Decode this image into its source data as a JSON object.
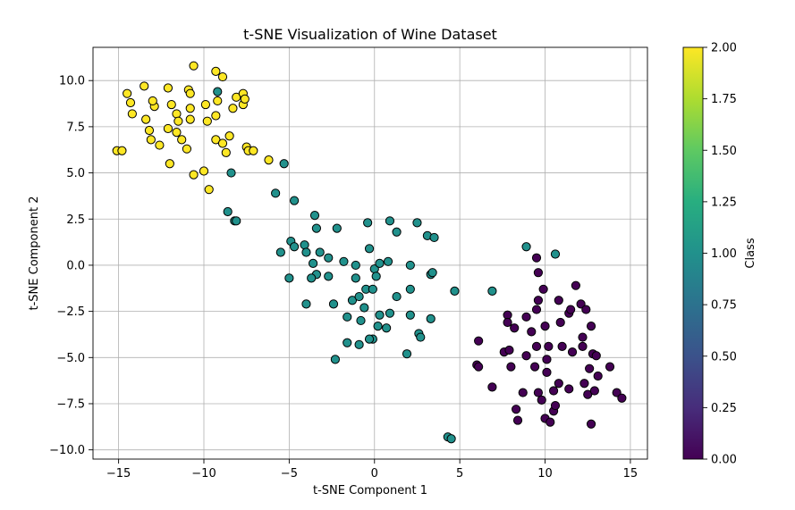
{
  "chart_data": {
    "type": "scatter",
    "title": "t-SNE Visualization of Wine Dataset",
    "xlabel": "t-SNE Component 1",
    "ylabel": "t-SNE Component 2",
    "xlim": [
      -16.5,
      16.0
    ],
    "ylim": [
      -10.5,
      11.8
    ],
    "xticks": [
      -15,
      -10,
      -5,
      0,
      5,
      10,
      15
    ],
    "yticks": [
      -10.0,
      -7.5,
      -5.0,
      -2.5,
      0.0,
      2.5,
      5.0,
      7.5,
      10.0
    ],
    "xtick_labels": [
      "−15",
      "−10",
      "−5",
      "0",
      "5",
      "10",
      "15"
    ],
    "ytick_labels": [
      "−10.0",
      "−7.5",
      "−5.0",
      "−2.5",
      "0.0",
      "2.5",
      "5.0",
      "7.5",
      "10.0"
    ],
    "grid": true,
    "colormap": "viridis",
    "colorbar": {
      "label": "Class",
      "range": [
        0.0,
        2.0
      ],
      "ticks": [
        0.0,
        0.25,
        0.5,
        0.75,
        1.0,
        1.25,
        1.5,
        1.75,
        2.0
      ],
      "tick_labels": [
        "0.00",
        "0.25",
        "0.50",
        "0.75",
        "1.00",
        "1.25",
        "1.50",
        "1.75",
        "2.00"
      ]
    },
    "class_colors": {
      "0": "#440154",
      "1": "#21918c",
      "2": "#fde725"
    },
    "series": [
      {
        "class": 2,
        "points": [
          [
            -15.1,
            6.2
          ],
          [
            -14.8,
            6.2
          ],
          [
            -14.5,
            9.3
          ],
          [
            -14.3,
            8.8
          ],
          [
            -14.2,
            8.2
          ],
          [
            -13.5,
            9.7
          ],
          [
            -13.4,
            7.9
          ],
          [
            -13.2,
            7.3
          ],
          [
            -13.1,
            6.8
          ],
          [
            -12.9,
            8.6
          ],
          [
            -13.0,
            8.9
          ],
          [
            -12.6,
            6.5
          ],
          [
            -12.1,
            7.4
          ],
          [
            -12.1,
            9.6
          ],
          [
            -12.0,
            5.5
          ],
          [
            -11.9,
            8.7
          ],
          [
            -11.6,
            7.2
          ],
          [
            -11.6,
            8.2
          ],
          [
            -11.5,
            7.8
          ],
          [
            -11.3,
            6.8
          ],
          [
            -11.0,
            6.3
          ],
          [
            -10.9,
            9.5
          ],
          [
            -10.8,
            9.3
          ],
          [
            -10.8,
            8.5
          ],
          [
            -10.8,
            7.9
          ],
          [
            -10.6,
            10.8
          ],
          [
            -10.6,
            4.9
          ],
          [
            -10.0,
            5.1
          ],
          [
            -9.8,
            7.8
          ],
          [
            -9.9,
            8.7
          ],
          [
            -9.7,
            4.1
          ],
          [
            -9.3,
            10.5
          ],
          [
            -9.3,
            8.1
          ],
          [
            -9.3,
            6.8
          ],
          [
            -9.2,
            8.9
          ],
          [
            -8.9,
            10.2
          ],
          [
            -8.9,
            6.6
          ],
          [
            -8.7,
            6.1
          ],
          [
            -8.5,
            7.0
          ],
          [
            -8.3,
            8.5
          ],
          [
            -8.1,
            9.1
          ],
          [
            -7.7,
            9.3
          ],
          [
            -7.7,
            8.7
          ],
          [
            -7.6,
            9.0
          ],
          [
            -7.5,
            6.4
          ],
          [
            -7.4,
            6.2
          ],
          [
            -7.1,
            6.2
          ],
          [
            -6.2,
            5.7
          ]
        ]
      },
      {
        "class": 1,
        "points": [
          [
            -9.2,
            9.4
          ],
          [
            -8.4,
            5.0
          ],
          [
            -8.6,
            2.9
          ],
          [
            -8.2,
            2.4
          ],
          [
            -8.1,
            2.4
          ],
          [
            -5.3,
            5.5
          ],
          [
            -5.8,
            3.9
          ],
          [
            -4.7,
            3.5
          ],
          [
            -5.5,
            0.7
          ],
          [
            -4.9,
            1.3
          ],
          [
            -4.7,
            1.0
          ],
          [
            -4.1,
            1.1
          ],
          [
            -4.0,
            0.7
          ],
          [
            -3.5,
            2.7
          ],
          [
            -3.4,
            2.0
          ],
          [
            -3.2,
            0.7
          ],
          [
            -3.6,
            0.1
          ],
          [
            -3.4,
            -0.5
          ],
          [
            -3.7,
            -0.7
          ],
          [
            -4.0,
            -2.1
          ],
          [
            -2.7,
            0.4
          ],
          [
            -2.7,
            -0.6
          ],
          [
            -2.2,
            2.0
          ],
          [
            -2.4,
            -2.1
          ],
          [
            -1.8,
            0.2
          ],
          [
            -1.6,
            -2.8
          ],
          [
            -1.6,
            -4.2
          ],
          [
            -1.3,
            -1.9
          ],
          [
            -1.1,
            0.0
          ],
          [
            -1.1,
            -0.7
          ],
          [
            -0.9,
            -1.7
          ],
          [
            -0.8,
            -3.0
          ],
          [
            -0.9,
            -4.3
          ],
          [
            -0.6,
            -2.3
          ],
          [
            -0.5,
            -1.3
          ],
          [
            -0.4,
            2.3
          ],
          [
            -0.3,
            0.9
          ],
          [
            -0.1,
            -1.3
          ],
          [
            0.0,
            -0.2
          ],
          [
            0.1,
            -0.6
          ],
          [
            0.3,
            0.1
          ],
          [
            0.3,
            -2.7
          ],
          [
            0.2,
            -3.3
          ],
          [
            -0.1,
            -4.0
          ],
          [
            0.7,
            -3.4
          ],
          [
            0.8,
            0.2
          ],
          [
            0.9,
            2.4
          ],
          [
            0.9,
            -2.6
          ],
          [
            1.3,
            1.8
          ],
          [
            1.3,
            -1.7
          ],
          [
            1.9,
            -4.8
          ],
          [
            2.1,
            0.0
          ],
          [
            2.1,
            -1.3
          ],
          [
            2.1,
            -2.7
          ],
          [
            2.5,
            2.3
          ],
          [
            2.6,
            -3.7
          ],
          [
            2.7,
            -3.9
          ],
          [
            3.1,
            1.6
          ],
          [
            3.5,
            1.5
          ],
          [
            3.3,
            -0.5
          ],
          [
            3.4,
            -0.4
          ],
          [
            3.3,
            -2.9
          ],
          [
            4.7,
            -1.4
          ],
          [
            -2.3,
            -5.1
          ],
          [
            -5.0,
            -0.7
          ],
          [
            -0.3,
            -4.0
          ],
          [
            4.3,
            -9.3
          ],
          [
            4.5,
            -9.4
          ],
          [
            6.9,
            -1.4
          ],
          [
            8.9,
            1.0
          ],
          [
            10.6,
            0.6
          ]
        ]
      },
      {
        "class": 0,
        "points": [
          [
            6.0,
            -5.4
          ],
          [
            6.1,
            -4.1
          ],
          [
            6.1,
            -5.5
          ],
          [
            6.9,
            -6.6
          ],
          [
            7.6,
            -4.7
          ],
          [
            7.8,
            -2.7
          ],
          [
            7.8,
            -3.1
          ],
          [
            7.9,
            -4.6
          ],
          [
            8.0,
            -5.5
          ],
          [
            8.2,
            -3.4
          ],
          [
            8.3,
            -7.8
          ],
          [
            8.4,
            -8.4
          ],
          [
            8.7,
            -6.9
          ],
          [
            8.9,
            -2.8
          ],
          [
            8.9,
            -4.9
          ],
          [
            9.2,
            -3.6
          ],
          [
            9.4,
            -5.5
          ],
          [
            9.5,
            0.4
          ],
          [
            9.6,
            -0.4
          ],
          [
            9.6,
            -1.9
          ],
          [
            9.5,
            -2.4
          ],
          [
            9.5,
            -4.4
          ],
          [
            9.6,
            -6.9
          ],
          [
            9.8,
            -7.3
          ],
          [
            9.9,
            -1.3
          ],
          [
            10.0,
            -3.3
          ],
          [
            10.0,
            -8.3
          ],
          [
            10.1,
            -5.1
          ],
          [
            10.2,
            -4.4
          ],
          [
            10.1,
            -5.8
          ],
          [
            10.3,
            -8.5
          ],
          [
            10.5,
            -6.8
          ],
          [
            10.5,
            -7.9
          ],
          [
            10.6,
            -7.6
          ],
          [
            10.8,
            -1.9
          ],
          [
            10.8,
            -6.4
          ],
          [
            10.9,
            -3.1
          ],
          [
            11.0,
            -4.4
          ],
          [
            11.4,
            -2.6
          ],
          [
            11.5,
            -2.4
          ],
          [
            11.4,
            -6.7
          ],
          [
            11.6,
            -4.7
          ],
          [
            11.8,
            -1.1
          ],
          [
            12.1,
            -2.1
          ],
          [
            12.2,
            -3.9
          ],
          [
            12.2,
            -4.4
          ],
          [
            12.3,
            -6.4
          ],
          [
            12.4,
            -2.4
          ],
          [
            12.5,
            -7.0
          ],
          [
            12.6,
            -5.6
          ],
          [
            12.7,
            -3.3
          ],
          [
            12.8,
            -4.8
          ],
          [
            12.7,
            -8.6
          ],
          [
            12.9,
            -6.8
          ],
          [
            13.0,
            -4.9
          ],
          [
            13.1,
            -6.0
          ],
          [
            13.8,
            -5.5
          ],
          [
            14.2,
            -6.9
          ],
          [
            14.5,
            -7.2
          ]
        ]
      }
    ]
  }
}
